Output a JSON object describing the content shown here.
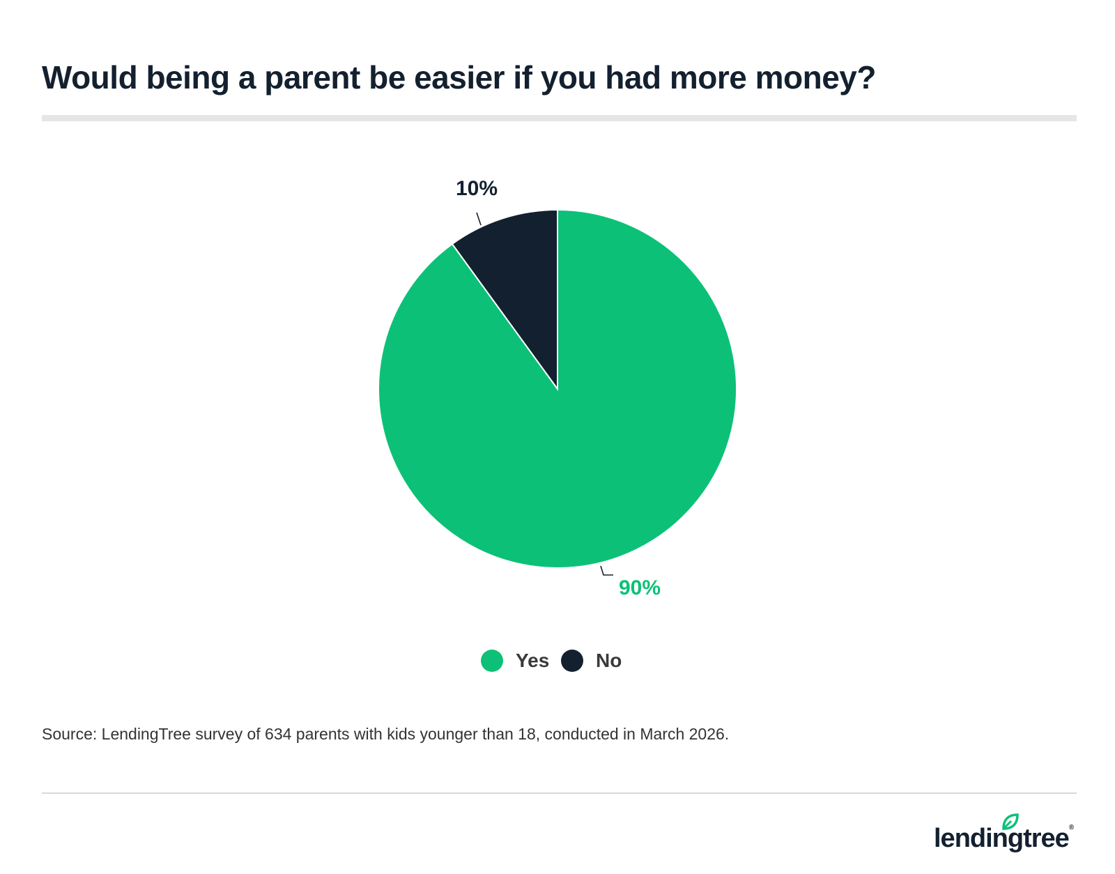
{
  "chart_data": {
    "type": "pie",
    "title": "Would being a parent be easier if you had more money?",
    "slices": [
      {
        "label": "Yes",
        "value": 90,
        "display": "90%",
        "color": "#0cc177"
      },
      {
        "label": "No",
        "value": 10,
        "display": "10%",
        "color": "#13202f"
      }
    ],
    "start_angle": "12 o'clock",
    "direction": "clockwise",
    "legend": {
      "placement": "bottom-center",
      "items": [
        "Yes",
        "No"
      ]
    },
    "source": "Source: LendingTree survey of 634 parents with kids younger than 18, conducted in March 2026."
  },
  "brand": {
    "name": "lendingtree",
    "accent": "#0cc177",
    "dark": "#13202f"
  }
}
